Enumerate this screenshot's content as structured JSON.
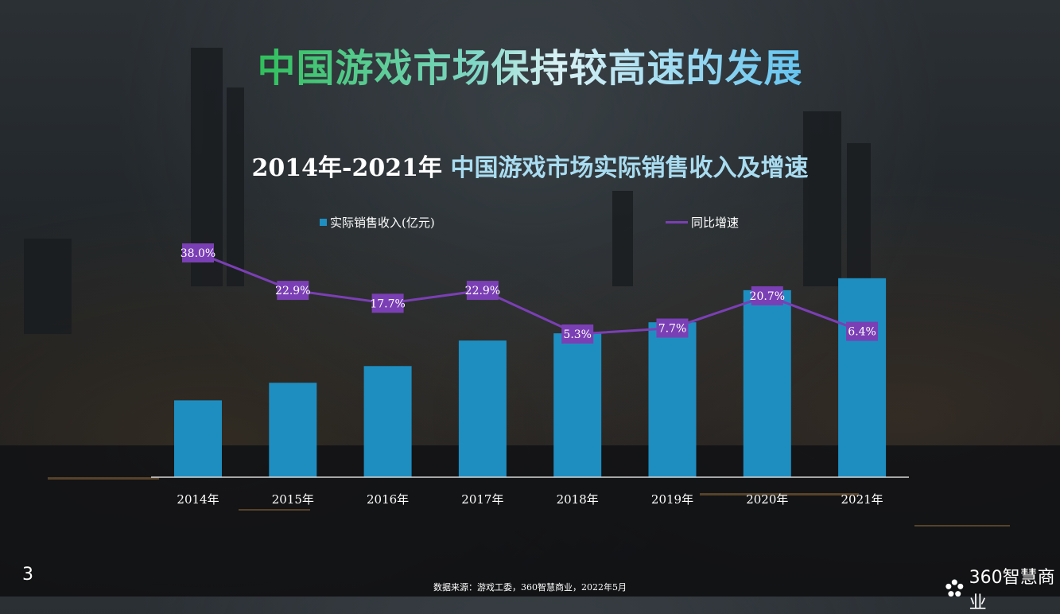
{
  "header": {
    "title": "中国游戏市场保持较高速的发展"
  },
  "chart_data": {
    "type": "bar",
    "title_prefix": "2014年-2021年",
    "title_main": "中国游戏市场实际销售收入及增速",
    "categories": [
      "2014年",
      "2015年",
      "2016年",
      "2017年",
      "2018年",
      "2019年",
      "2020年",
      "2021年"
    ],
    "series": [
      {
        "name": "实际销售收入(亿元)",
        "type": "bar",
        "color": "#1e8ec1",
        "values": [
          1145,
          1407,
          1656,
          2036,
          2144,
          2309,
          2787,
          2965
        ]
      },
      {
        "name": "同比增速",
        "type": "line",
        "color": "#7b3fb5",
        "values": [
          38.0,
          22.9,
          17.7,
          22.9,
          5.3,
          7.7,
          20.7,
          6.4
        ],
        "labels": [
          "38.0%",
          "22.9%",
          "17.7%",
          "22.9%",
          "5.3%",
          "7.7%",
          "20.7%",
          "6.4%"
        ]
      }
    ],
    "legend": "top",
    "grid": false
  },
  "footer": {
    "page_number": "3",
    "source": "数据来源：游戏工委，360智慧商业，2022年5月",
    "brand": "360智慧商业"
  }
}
